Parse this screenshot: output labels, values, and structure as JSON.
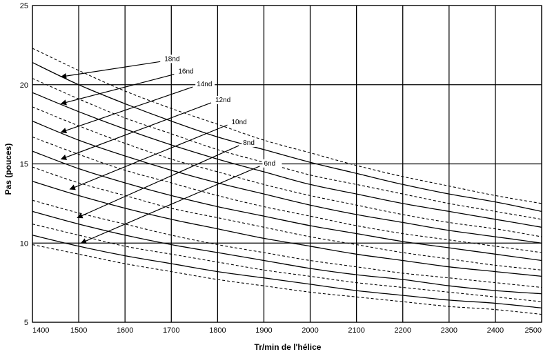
{
  "chart_data": {
    "type": "line",
    "title": "",
    "xlabel": "Tr/min de l'hélice",
    "ylabel": "Pas (pouces)",
    "xlim": [
      1400,
      2500
    ],
    "ylim": [
      5,
      25
    ],
    "x_ticks": [
      "1400",
      "1500",
      "1600",
      "1700",
      "1800",
      "1900",
      "2000",
      "2100",
      "2200",
      "2300",
      "2400",
      "2500"
    ],
    "y_ticks": [
      "5",
      "10",
      "15",
      "20",
      "25"
    ],
    "grid": true,
    "x": [
      1400,
      1500,
      1600,
      1700,
      1800,
      1900,
      2000,
      2100,
      2200,
      2300,
      2400,
      2500
    ],
    "series": [
      {
        "style": "dashed",
        "values": [
          9.9,
          9.3,
          8.7,
          8.2,
          7.7,
          7.3,
          6.9,
          6.6,
          6.3,
          6.0,
          5.8,
          5.5
        ]
      },
      {
        "style": "solid",
        "values": [
          10.5,
          9.8,
          9.2,
          8.7,
          8.2,
          7.8,
          7.4,
          7.0,
          6.7,
          6.4,
          6.2,
          5.9
        ]
      },
      {
        "style": "dashed",
        "values": [
          11.2,
          10.5,
          9.8,
          9.3,
          8.8,
          8.3,
          7.9,
          7.5,
          7.2,
          6.9,
          6.6,
          6.3
        ]
      },
      {
        "style": "solid",
        "values": [
          12.0,
          11.2,
          10.5,
          9.9,
          9.4,
          8.9,
          8.4,
          8.0,
          7.7,
          7.3,
          7.0,
          6.8
        ]
      },
      {
        "style": "dashed",
        "values": [
          12.7,
          11.9,
          11.2,
          10.5,
          9.9,
          9.4,
          8.9,
          8.5,
          8.1,
          7.8,
          7.5,
          7.2
        ]
      },
      {
        "style": "solid",
        "values": [
          13.9,
          13.0,
          12.2,
          11.5,
          10.9,
          10.3,
          9.8,
          9.3,
          8.9,
          8.5,
          8.2,
          7.9
        ]
      },
      {
        "style": "dashed",
        "values": [
          14.8,
          13.8,
          13.0,
          12.2,
          11.6,
          11.0,
          10.4,
          9.9,
          9.4,
          9.0,
          8.6,
          8.3
        ]
      },
      {
        "style": "solid",
        "values": [
          15.8,
          14.7,
          13.8,
          13.0,
          12.3,
          11.7,
          11.1,
          10.6,
          10.1,
          9.7,
          9.3,
          8.9
        ]
      },
      {
        "style": "dashed",
        "values": [
          16.7,
          15.6,
          14.6,
          13.8,
          13.0,
          12.3,
          11.7,
          11.1,
          10.6,
          10.2,
          9.8,
          9.4
        ]
      },
      {
        "style": "solid",
        "values": [
          17.7,
          16.5,
          15.5,
          14.6,
          13.8,
          13.1,
          12.4,
          11.8,
          11.3,
          10.8,
          10.4,
          10.0
        ]
      },
      {
        "style": "dashed",
        "values": [
          18.6,
          17.4,
          16.3,
          15.3,
          14.5,
          13.7,
          13.0,
          12.4,
          11.8,
          11.3,
          10.9,
          10.4
        ]
      },
      {
        "style": "solid",
        "values": [
          19.5,
          18.3,
          17.2,
          16.2,
          15.3,
          14.5,
          13.7,
          13.1,
          12.5,
          12.0,
          11.5,
          11.0
        ]
      },
      {
        "style": "dashed",
        "values": [
          20.4,
          19.1,
          17.9,
          16.9,
          15.9,
          15.1,
          14.3,
          13.7,
          13.1,
          12.5,
          12.0,
          11.5
        ]
      },
      {
        "style": "solid",
        "values": [
          21.4,
          20.0,
          18.8,
          17.7,
          16.7,
          15.9,
          15.1,
          14.4,
          13.7,
          13.1,
          12.6,
          12.0
        ]
      },
      {
        "style": "dashed",
        "values": [
          22.3,
          20.9,
          19.6,
          18.5,
          17.5,
          16.5,
          15.7,
          14.9,
          14.2,
          13.6,
          13.0,
          12.5
        ]
      }
    ],
    "annotations": [
      {
        "text": "18nd",
        "label_at": [
          1685,
          21.5
        ],
        "points_to": [
          1462,
          20.5
        ]
      },
      {
        "text": "16nd",
        "label_at": [
          1715,
          20.7
        ],
        "points_to": [
          1462,
          18.8
        ]
      },
      {
        "text": "14nd",
        "label_at": [
          1755,
          19.9
        ],
        "points_to": [
          1462,
          17.0
        ]
      },
      {
        "text": "12nd",
        "label_at": [
          1795,
          18.9
        ],
        "points_to": [
          1462,
          15.3
        ]
      },
      {
        "text": "10nd",
        "label_at": [
          1830,
          17.5
        ],
        "points_to": [
          1481,
          13.4
        ]
      },
      {
        "text": "8nd",
        "label_at": [
          1855,
          16.2
        ],
        "points_to": [
          1497,
          11.6
        ]
      },
      {
        "text": "6nd",
        "label_at": [
          1900,
          14.9
        ],
        "points_to": [
          1505,
          10.0
        ]
      }
    ]
  }
}
